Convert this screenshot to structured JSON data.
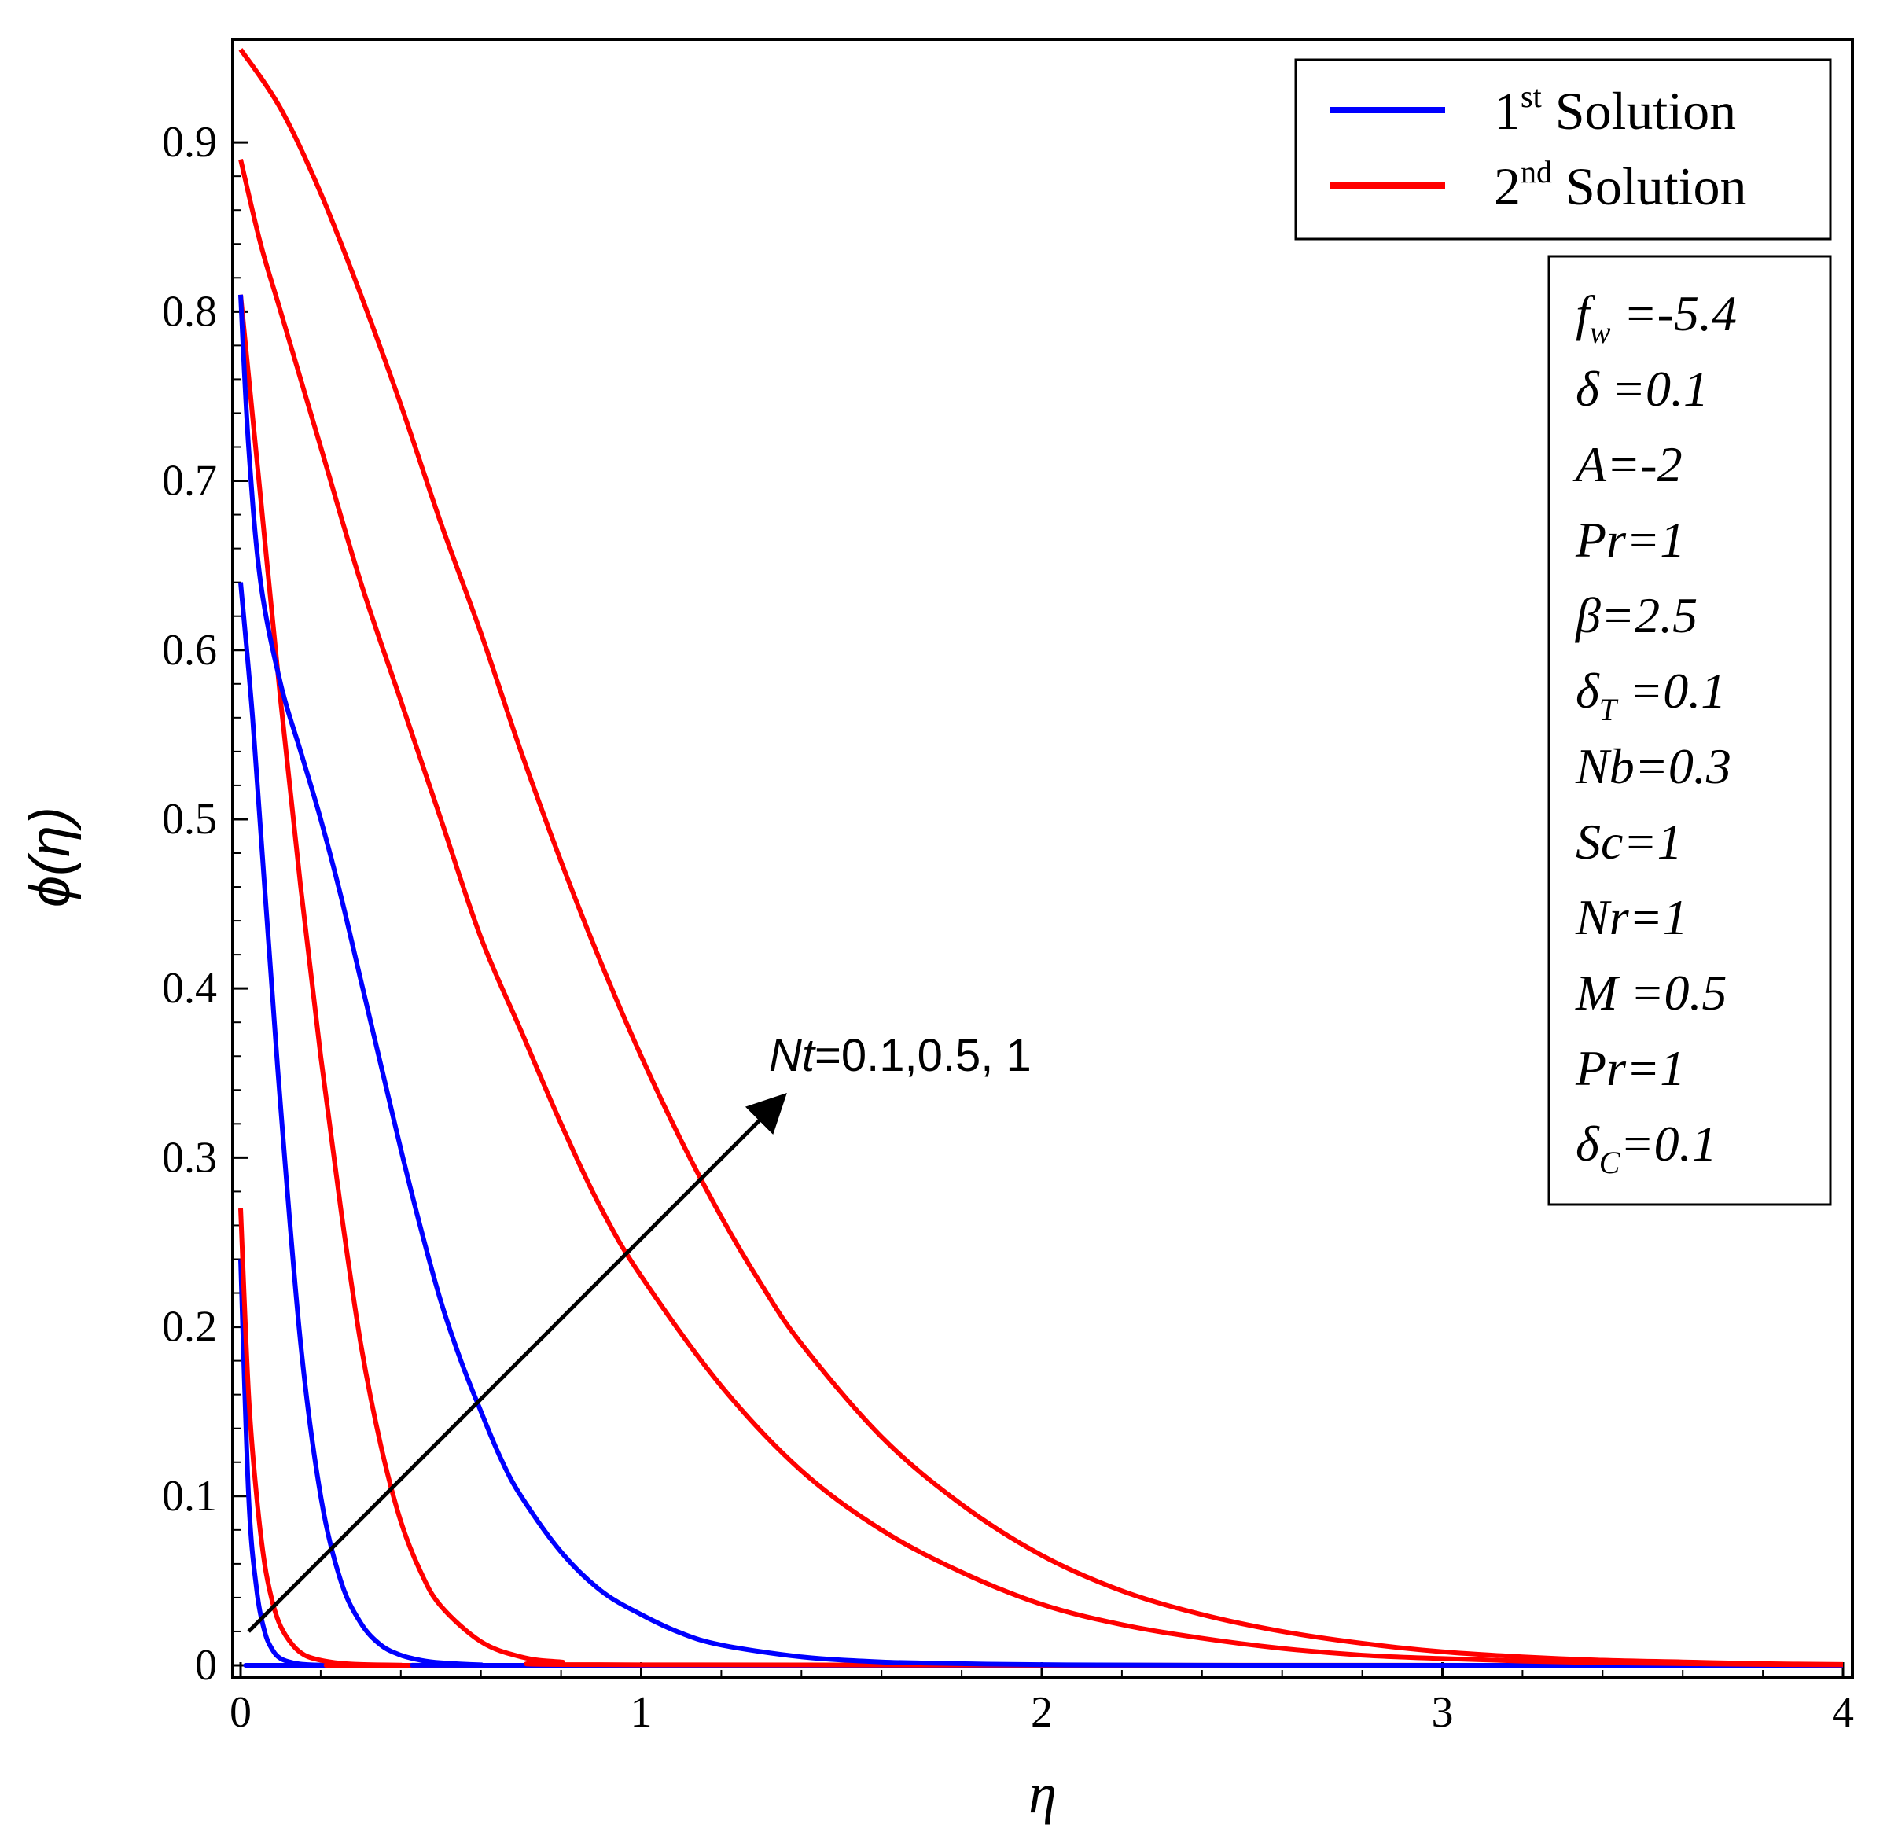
{
  "chart_data": {
    "type": "line",
    "xlabel": "η",
    "ylabel": "ϕ(η)",
    "xlim": [
      0,
      4
    ],
    "ylim": [
      0,
      0.96
    ],
    "x_ticks": [
      "0",
      "1",
      "2",
      "3",
      "4"
    ],
    "y_ticks": [
      "0",
      "0.1",
      "0.2",
      "0.3",
      "0.4",
      "0.5",
      "0.6",
      "0.7",
      "0.8",
      "0.9"
    ],
    "x_tick_values": [
      0,
      1,
      2,
      3,
      4
    ],
    "y_tick_values": [
      0,
      0.1,
      0.2,
      0.3,
      0.4,
      0.5,
      0.6,
      0.7,
      0.8,
      0.9
    ],
    "legend": {
      "position": "top-right",
      "entries": [
        {
          "base": "1",
          "sup": "st",
          "text": " Solution",
          "color": "#0000ff"
        },
        {
          "base": "2",
          "sup": "nd",
          "text": " Solution",
          "color": "#ff0000"
        }
      ]
    },
    "parameters": [
      {
        "base": "f",
        "sub": "w",
        "rest": " =-5.4"
      },
      {
        "base": "δ",
        "sub": "",
        "rest": " =0.1"
      },
      {
        "base": "A=-2",
        "sub": "",
        "rest": ""
      },
      {
        "base": "Pr=1",
        "sub": "",
        "rest": ""
      },
      {
        "base": "β=2.5",
        "sub": "",
        "rest": ""
      },
      {
        "base": "δ",
        "sub": "T",
        "rest": " =0.1"
      },
      {
        "base": "Nb=0.3",
        "sub": "",
        "rest": ""
      },
      {
        "base": "Sc=1",
        "sub": "",
        "rest": ""
      },
      {
        "base": "Nr=1",
        "sub": "",
        "rest": ""
      },
      {
        "base": "M",
        "sub": "",
        "rest": " =0.5"
      },
      {
        "base": "Pr=1",
        "sub": "",
        "rest": ""
      },
      {
        "base": "δ",
        "sub": "C",
        "rest": "=0.1"
      }
    ],
    "annotation": {
      "label_italic": "Nt",
      "label_rest": "=0.1,0.5, 1",
      "arrow_from": [
        0.02,
        0.02
      ],
      "arrow_to": [
        1.35,
        0.335
      ]
    },
    "series": [
      {
        "name": "1st Solution, Nt=0.1",
        "color": "#0000ff",
        "x": [
          0,
          0.02,
          0.04,
          0.06,
          0.08,
          0.1,
          0.13,
          0.16,
          0.2,
          0.25,
          0.3,
          4.0
        ],
        "y": [
          0.24,
          0.1,
          0.045,
          0.02,
          0.009,
          0.004,
          0.0015,
          0.0005,
          0.0001,
          0,
          0,
          0
        ]
      },
      {
        "name": "2nd Solution, Nt=0.1",
        "color": "#ff0000",
        "x": [
          0,
          0.02,
          0.04,
          0.06,
          0.08,
          0.1,
          0.13,
          0.16,
          0.2,
          0.25,
          0.3,
          0.4,
          0.5,
          4.0
        ],
        "y": [
          0.27,
          0.16,
          0.1,
          0.06,
          0.037,
          0.023,
          0.012,
          0.006,
          0.003,
          0.0012,
          0.0005,
          0.0001,
          0,
          0
        ]
      },
      {
        "name": "1st Solution, Nt=0.5",
        "color": "#0000ff",
        "x": [
          0,
          0.03,
          0.06,
          0.1,
          0.15,
          0.2,
          0.25,
          0.3,
          0.35,
          0.4,
          0.45,
          0.5,
          0.6,
          0.7,
          4.0
        ],
        "y": [
          0.64,
          0.56,
          0.46,
          0.33,
          0.19,
          0.1,
          0.05,
          0.025,
          0.012,
          0.006,
          0.003,
          0.0015,
          0.0003,
          0,
          0
        ]
      },
      {
        "name": "2nd Solution, Nt=0.5",
        "color": "#ff0000",
        "x": [
          0,
          0.05,
          0.1,
          0.15,
          0.2,
          0.25,
          0.3,
          0.35,
          0.4,
          0.45,
          0.5,
          0.6,
          0.7,
          0.8,
          1.0,
          4.0
        ],
        "y": [
          0.81,
          0.69,
          0.57,
          0.46,
          0.36,
          0.27,
          0.19,
          0.13,
          0.085,
          0.055,
          0.035,
          0.014,
          0.005,
          0.002,
          0.0003,
          0
        ]
      },
      {
        "name": "1st Solution, Nt=1",
        "color": "#0000ff",
        "x": [
          0,
          0.02,
          0.05,
          0.1,
          0.15,
          0.2,
          0.25,
          0.3,
          0.35,
          0.4,
          0.45,
          0.5,
          0.55,
          0.6,
          0.65,
          0.7,
          0.8,
          0.9,
          1.0,
          1.1,
          1.2,
          1.4,
          1.6,
          1.8,
          2.0,
          2.5,
          4.0
        ],
        "y": [
          0.81,
          0.72,
          0.64,
          0.58,
          0.54,
          0.5,
          0.455,
          0.405,
          0.355,
          0.305,
          0.258,
          0.215,
          0.18,
          0.15,
          0.122,
          0.1,
          0.067,
          0.044,
          0.03,
          0.019,
          0.012,
          0.005,
          0.002,
          0.001,
          0.0004,
          0,
          0
        ]
      },
      {
        "name": "2nd Solution, Nt=1",
        "color": "#ff0000",
        "x": [
          0,
          0.05,
          0.1,
          0.2,
          0.3,
          0.4,
          0.5,
          0.6,
          0.7,
          0.8,
          0.9,
          1.0,
          1.2,
          1.4,
          1.6,
          1.8,
          2.0,
          2.2,
          2.4,
          2.6,
          2.8,
          3.0,
          3.2,
          3.4,
          3.6,
          3.8,
          4.0
        ],
        "y": [
          0.89,
          0.84,
          0.8,
          0.72,
          0.64,
          0.57,
          0.5,
          0.43,
          0.375,
          0.32,
          0.27,
          0.23,
          0.165,
          0.115,
          0.08,
          0.055,
          0.036,
          0.024,
          0.016,
          0.01,
          0.006,
          0.004,
          0.0025,
          0.0015,
          0.001,
          0.0005,
          0.0003
        ]
      },
      {
        "name": "2nd Solution, Nt=1 (upper)",
        "color": "#ff0000",
        "x": [
          0,
          0.1,
          0.2,
          0.3,
          0.4,
          0.5,
          0.6,
          0.7,
          0.8,
          0.9,
          1.0,
          1.1,
          1.2,
          1.3,
          1.4,
          1.6,
          1.8,
          2.0,
          2.2,
          2.4,
          2.6,
          2.8,
          3.0,
          3.2,
          3.4,
          3.6,
          3.8,
          4.0
        ],
        "y": [
          0.955,
          0.92,
          0.87,
          0.81,
          0.745,
          0.675,
          0.61,
          0.54,
          0.475,
          0.415,
          0.36,
          0.31,
          0.265,
          0.225,
          0.19,
          0.135,
          0.095,
          0.065,
          0.044,
          0.03,
          0.02,
          0.013,
          0.008,
          0.005,
          0.003,
          0.002,
          0.001,
          0.0005
        ]
      }
    ]
  }
}
